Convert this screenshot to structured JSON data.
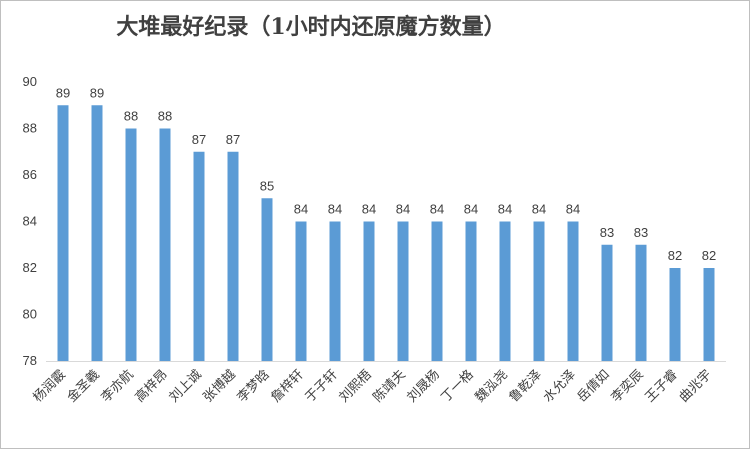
{
  "chart_data": {
    "type": "bar",
    "title": "大堆最好纪录（1小时内还原魔方数量）",
    "xlabel": "",
    "ylabel": "",
    "ylim": [
      78,
      90
    ],
    "yticks": [
      78,
      80,
      82,
      84,
      86,
      88,
      90
    ],
    "grid": false,
    "legend": "none",
    "bar_color": "#5b9bd5",
    "categories": [
      "杨润霰",
      "金圣羲",
      "李亦航",
      "高梓昂",
      "刘上诚",
      "张博越",
      "李梦晗",
      "詹梓轩",
      "于子轩",
      "刘熙梧",
      "陈靖夫",
      "刘晟杨",
      "丁一格",
      "魏泓尧",
      "鲁乾泽",
      "水允泽",
      "岳倩如",
      "李奕辰",
      "王子睿",
      "曲兆宇"
    ],
    "values": [
      89,
      89,
      88,
      88,
      87,
      87,
      85,
      84,
      84,
      84,
      84,
      84,
      84,
      84,
      84,
      84,
      83,
      83,
      82,
      82
    ]
  }
}
